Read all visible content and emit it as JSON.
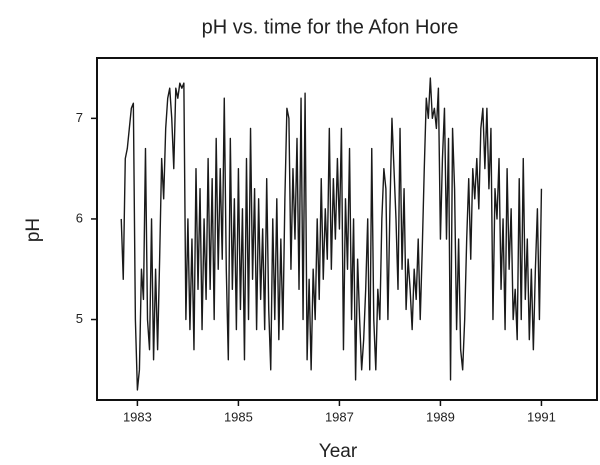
{
  "chart_data": {
    "type": "line",
    "title": "pH vs. time for the Afon Hore",
    "x_label": "Year",
    "y_label": "pH",
    "color": "#1a1a1a",
    "grid": false,
    "xlim": [
      1982.2,
      1992.1
    ],
    "xticks": [
      1983,
      1985,
      1987,
      1989,
      1991
    ],
    "ylim": [
      4.2,
      7.6
    ],
    "yticks": [
      5,
      6,
      7
    ],
    "x": [
      1982.68,
      1982.72,
      1982.76,
      1982.8,
      1982.84,
      1982.88,
      1982.92,
      1982.96,
      1983,
      1983.04,
      1983.08,
      1983.12,
      1983.16,
      1983.2,
      1983.24,
      1983.28,
      1983.32,
      1983.36,
      1983.4,
      1983.44,
      1983.48,
      1983.52,
      1983.56,
      1983.6,
      1983.64,
      1983.68,
      1983.72,
      1983.76,
      1983.8,
      1983.84,
      1983.88,
      1983.92,
      1983.96,
      1984,
      1984.04,
      1984.08,
      1984.12,
      1984.16,
      1984.2,
      1984.24,
      1984.28,
      1984.32,
      1984.36,
      1984.4,
      1984.44,
      1984.48,
      1984.52,
      1984.56,
      1984.6,
      1984.64,
      1984.68,
      1984.72,
      1984.76,
      1984.8,
      1984.84,
      1984.88,
      1984.92,
      1984.96,
      1985,
      1985.04,
      1985.08,
      1985.12,
      1985.16,
      1985.2,
      1985.24,
      1985.28,
      1985.32,
      1985.36,
      1985.4,
      1985.44,
      1985.48,
      1985.52,
      1985.56,
      1985.6,
      1985.64,
      1985.68,
      1985.72,
      1985.76,
      1985.8,
      1985.84,
      1985.88,
      1985.92,
      1985.96,
      1986,
      1986.04,
      1986.08,
      1986.12,
      1986.16,
      1986.2,
      1986.24,
      1986.28,
      1986.32,
      1986.36,
      1986.4,
      1986.44,
      1986.48,
      1986.52,
      1986.56,
      1986.6,
      1986.64,
      1986.68,
      1986.72,
      1986.76,
      1986.8,
      1986.84,
      1986.88,
      1986.92,
      1986.96,
      1987,
      1987.04,
      1987.08,
      1987.12,
      1987.16,
      1987.2,
      1987.24,
      1987.28,
      1987.32,
      1987.36,
      1987.4,
      1987.44,
      1987.48,
      1987.52,
      1987.56,
      1987.6,
      1987.64,
      1987.68,
      1987.72,
      1987.76,
      1987.8,
      1987.84,
      1987.88,
      1987.92,
      1987.96,
      1988,
      1988.04,
      1988.08,
      1988.12,
      1988.16,
      1988.2,
      1988.24,
      1988.28,
      1988.32,
      1988.36,
      1988.4,
      1988.44,
      1988.48,
      1988.52,
      1988.56,
      1988.6,
      1988.64,
      1988.68,
      1988.72,
      1988.76,
      1988.8,
      1988.84,
      1988.88,
      1988.92,
      1988.96,
      1989,
      1989.04,
      1989.08,
      1989.12,
      1989.16,
      1989.2,
      1989.24,
      1989.28,
      1989.32,
      1989.36,
      1989.4,
      1989.44,
      1989.48,
      1989.52,
      1989.56,
      1989.6,
      1989.64,
      1989.68,
      1989.72,
      1989.76,
      1989.8,
      1989.84,
      1989.88,
      1989.92,
      1989.96,
      1990,
      1990.04,
      1990.08,
      1990.12,
      1990.16,
      1990.2,
      1990.24,
      1990.28,
      1990.32,
      1990.36,
      1990.4,
      1990.44,
      1990.48,
      1990.52,
      1990.56,
      1990.6,
      1990.64,
      1990.68,
      1990.72,
      1990.76,
      1990.8,
      1990.84,
      1990.88,
      1990.92,
      1990.96,
      1991
    ],
    "values": [
      6.0,
      5.4,
      6.6,
      6.7,
      6.9,
      7.1,
      7.15,
      5.0,
      4.3,
      4.5,
      5.5,
      5.2,
      6.7,
      5.0,
      4.7,
      6.0,
      4.6,
      5.5,
      4.7,
      5.6,
      6.6,
      6.2,
      6.9,
      7.2,
      7.3,
      7.0,
      6.5,
      7.3,
      7.2,
      7.35,
      7.3,
      7.35,
      5.0,
      6.0,
      4.9,
      5.8,
      4.7,
      6.5,
      5.3,
      6.3,
      4.9,
      6.0,
      5.2,
      6.6,
      5.3,
      6.4,
      5.0,
      6.8,
      5.5,
      6.5,
      5.6,
      7.2,
      5.5,
      4.6,
      6.8,
      5.3,
      6.2,
      4.9,
      6.5,
      5.1,
      6.1,
      4.6,
      6.6,
      5.0,
      6.9,
      5.4,
      6.3,
      4.9,
      6.2,
      5.2,
      5.9,
      4.9,
      6.4,
      5.1,
      4.5,
      6.0,
      5.0,
      6.2,
      4.8,
      5.8,
      4.9,
      6.2,
      7.1,
      7.0,
      5.5,
      6.5,
      5.8,
      6.8,
      5.3,
      7.2,
      5.0,
      7.25,
      4.6,
      5.4,
      4.5,
      5.5,
      5.0,
      6.0,
      5.2,
      6.4,
      5.4,
      6.1,
      5.6,
      6.9,
      5.5,
      6.4,
      5.8,
      6.6,
      5.9,
      6.9,
      4.7,
      6.2,
      5.5,
      6.7,
      5.0,
      6.0,
      4.4,
      5.6,
      5.0,
      4.5,
      4.8,
      5.3,
      6.0,
      4.5,
      6.7,
      5.0,
      4.5,
      5.3,
      5.0,
      6.0,
      6.5,
      6.3,
      5.0,
      6.1,
      7.0,
      6.5,
      6.0,
      5.3,
      6.9,
      5.5,
      6.3,
      5.1,
      5.6,
      5.3,
      4.9,
      5.5,
      5.2,
      5.8,
      5.0,
      5.7,
      6.5,
      7.2,
      7.0,
      7.4,
      7.0,
      7.1,
      6.9,
      7.3,
      5.8,
      6.6,
      7.1,
      5.8,
      6.8,
      4.4,
      6.9,
      6.3,
      4.9,
      5.8,
      4.7,
      4.5,
      5.0,
      5.8,
      6.4,
      5.6,
      6.5,
      6.2,
      6.6,
      6.1,
      6.9,
      7.1,
      6.5,
      7.1,
      6.3,
      6.9,
      5.0,
      6.3,
      6.0,
      6.6,
      5.3,
      6.0,
      4.9,
      6.5,
      5.5,
      6.1,
      5.0,
      5.3,
      4.8,
      6.4,
      5.0,
      6.6,
      5.2,
      5.8,
      4.8,
      5.5,
      4.7,
      5.5,
      6.1,
      5.0,
      6.3
    ]
  }
}
